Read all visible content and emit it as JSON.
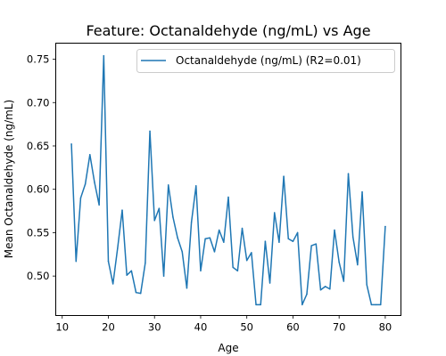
{
  "chart_data": {
    "type": "line",
    "title": "Feature: Octanaldehyde (ng/mL) vs Age",
    "xlabel": "Age",
    "ylabel": "Mean Octanaldehyde (ng/mL)",
    "xlim": [
      8.6,
      83.4
    ],
    "ylim": [
      0.4545,
      0.7685
    ],
    "xticks": [
      10,
      20,
      30,
      40,
      50,
      60,
      70,
      80
    ],
    "yticks": [
      0.5,
      0.55,
      0.6,
      0.65,
      0.7,
      0.75
    ],
    "ytick_labels": [
      "0.50",
      "0.55",
      "0.60",
      "0.65",
      "0.70",
      "0.75"
    ],
    "grid": false,
    "legend_position": "upper right",
    "series": [
      {
        "name": "Octanaldehyde (ng/mL) (R2=0.01)",
        "color": "#1f77b4",
        "x": [
          12,
          13,
          14,
          15,
          16,
          17,
          18,
          19,
          20,
          21,
          22,
          23,
          24,
          25,
          26,
          27,
          28,
          29,
          30,
          31,
          32,
          33,
          34,
          35,
          36,
          37,
          38,
          39,
          40,
          41,
          42,
          43,
          44,
          45,
          46,
          47,
          48,
          49,
          50,
          51,
          52,
          53,
          54,
          55,
          56,
          57,
          58,
          59,
          60,
          61,
          62,
          63,
          64,
          65,
          66,
          67,
          68,
          69,
          70,
          71,
          72,
          73,
          74,
          75,
          76,
          77,
          78,
          79,
          80
        ],
        "y": [
          0.652,
          0.517,
          0.59,
          0.606,
          0.64,
          0.608,
          0.582,
          0.754,
          0.517,
          0.491,
          0.532,
          0.576,
          0.501,
          0.506,
          0.481,
          0.48,
          0.515,
          0.667,
          0.564,
          0.578,
          0.5,
          0.605,
          0.568,
          0.544,
          0.528,
          0.486,
          0.562,
          0.604,
          0.506,
          0.543,
          0.544,
          0.528,
          0.553,
          0.539,
          0.591,
          0.51,
          0.506,
          0.555,
          0.518,
          0.527,
          0.467,
          0.467,
          0.54,
          0.492,
          0.573,
          0.539,
          0.615,
          0.543,
          0.54,
          0.55,
          0.467,
          0.479,
          0.535,
          0.537,
          0.484,
          0.488,
          0.485,
          0.553,
          0.516,
          0.494,
          0.618,
          0.545,
          0.513,
          0.597,
          0.49,
          0.467,
          0.467,
          0.467,
          0.557
        ]
      }
    ]
  }
}
